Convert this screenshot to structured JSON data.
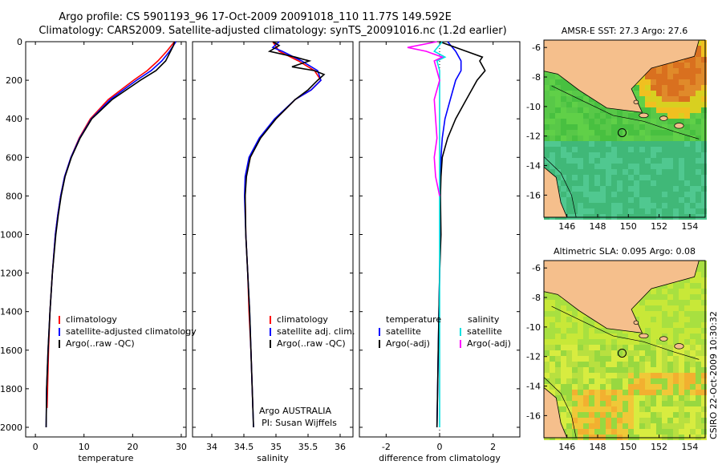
{
  "title": {
    "line1": "Argo profile: CS 5901193_96 17-Oct-2009 20091018_110 11.77S 149.592E",
    "line2": "Climatology: CARS2009. Satellite-adjusted climatology: synTS_20091016.nc (1.2d earlier)"
  },
  "stamp": "CSIRO 22-Oct-2009 10:30:32",
  "colors": {
    "climatology": "#ff0000",
    "satellite": "#0000ff",
    "argo": "#000000",
    "cyan": "#00e0e0",
    "magenta": "#ff00ff",
    "land": "#f5bf8c"
  },
  "chart_data": [
    {
      "type": "line",
      "id": "temperature",
      "xlabel": "temperature",
      "ylabel": "",
      "xlim": [
        -2,
        31
      ],
      "ylim": [
        2050,
        0
      ],
      "xticks": [
        0,
        10,
        20,
        30
      ],
      "yticks": [
        0,
        200,
        400,
        600,
        800,
        1000,
        1200,
        1400,
        1600,
        1800,
        2000
      ],
      "legend": [
        "climatology",
        "satellite-adjusted climatology",
        "Argo(..raw -QC)"
      ],
      "series": [
        {
          "name": "climatology",
          "color": "#ff0000",
          "depth": [
            0,
            50,
            100,
            150,
            200,
            300,
            400,
            500,
            600,
            700,
            800,
            900,
            1000,
            1200,
            1400,
            1600,
            1800,
            1900
          ],
          "values": [
            28.6,
            27.0,
            25.2,
            23.0,
            20.2,
            15.0,
            11.3,
            9.0,
            7.3,
            6.0,
            5.2,
            4.6,
            4.1,
            3.5,
            3.0,
            2.7,
            2.5,
            2.4
          ]
        },
        {
          "name": "satellite-adjusted climatology",
          "color": "#0000ff",
          "depth": [
            0,
            50,
            100,
            150,
            200,
            300,
            400,
            500,
            600,
            700,
            800,
            900,
            1000,
            1200,
            1400,
            1600,
            1800,
            2000
          ],
          "values": [
            28.9,
            27.6,
            26.0,
            23.8,
            20.8,
            15.4,
            11.5,
            9.1,
            7.3,
            6.0,
            5.2,
            4.6,
            4.1,
            3.5,
            3.0,
            2.6,
            2.3,
            2.2
          ]
        },
        {
          "name": "Argo(..raw -QC)",
          "color": "#000000",
          "depth": [
            0,
            20,
            50,
            100,
            150,
            200,
            300,
            400,
            500,
            600,
            700,
            800,
            900,
            1000,
            1200,
            1400,
            1600,
            1800,
            2000
          ],
          "values": [
            28.6,
            28.4,
            27.8,
            26.8,
            24.8,
            21.6,
            15.8,
            11.6,
            9.2,
            7.4,
            6.1,
            5.3,
            4.7,
            4.2,
            3.5,
            3.0,
            2.6,
            2.3,
            2.2
          ]
        }
      ]
    },
    {
      "type": "line",
      "id": "salinity",
      "xlabel": "salinity",
      "xlim": [
        33.7,
        36.2
      ],
      "ylim": [
        2050,
        0
      ],
      "xticks": [
        34,
        34.5,
        35,
        35.5,
        36
      ],
      "xtick_labels": [
        "34",
        "34.5",
        "35",
        "35.5",
        "36"
      ],
      "legend": [
        "climatology",
        "satellite adj. clim.",
        "Argo(..raw -QC)"
      ],
      "series": [
        {
          "name": "climatology",
          "color": "#ff0000",
          "depth": [
            0,
            50,
            100,
            150,
            200,
            250,
            300,
            400,
            500,
            600,
            700,
            800,
            1000,
            1200,
            1400,
            1600,
            1800,
            1900
          ],
          "values": [
            34.95,
            35.05,
            35.35,
            35.6,
            35.7,
            35.55,
            35.3,
            35.0,
            34.75,
            34.6,
            34.53,
            34.52,
            34.53,
            34.56,
            34.58,
            34.61,
            34.63,
            34.64
          ]
        },
        {
          "name": "satellite adj. clim.",
          "color": "#0000ff",
          "depth": [
            0,
            30,
            50,
            100,
            150,
            200,
            250,
            300,
            400,
            500,
            600,
            700,
            800,
            1000,
            1200,
            1400,
            1600,
            1800,
            2000
          ],
          "values": [
            35.05,
            34.95,
            35.1,
            35.4,
            35.65,
            35.7,
            35.55,
            35.3,
            34.98,
            34.74,
            34.58,
            34.52,
            34.51,
            34.53,
            34.56,
            34.59,
            34.61,
            34.63,
            34.65
          ]
        },
        {
          "name": "Argo(..raw -QC)",
          "color": "#000000",
          "depth": [
            0,
            20,
            50,
            80,
            100,
            130,
            150,
            170,
            200,
            250,
            300,
            400,
            500,
            600,
            700,
            800,
            1000,
            1200,
            1400,
            1600,
            1800,
            2000
          ],
          "values": [
            34.95,
            35.05,
            34.9,
            35.3,
            35.52,
            35.25,
            35.6,
            35.75,
            35.65,
            35.5,
            35.3,
            35.0,
            34.76,
            34.6,
            34.54,
            34.52,
            34.53,
            34.56,
            34.59,
            34.61,
            34.63,
            34.65
          ]
        }
      ],
      "annotations": [
        "Argo AUSTRALIA",
        "PI: Susan Wijffels"
      ]
    },
    {
      "type": "line",
      "id": "difference",
      "xlabel": "difference from climatology",
      "xlim": [
        -3,
        3
      ],
      "ylim": [
        2050,
        0
      ],
      "xticks": [
        -2,
        0,
        2
      ],
      "legend_groups": [
        {
          "title": "temperature",
          "entries": [
            "satellite",
            "Argo(-adj)"
          ]
        },
        {
          "title": "salinity",
          "entries": [
            "satellite",
            "Argo(-adj)"
          ]
        }
      ],
      "series": [
        {
          "name": "temperature satellite",
          "color": "#0000ff",
          "depth": [
            0,
            50,
            100,
            150,
            200,
            300,
            400,
            500,
            600,
            800,
            1000,
            1200,
            1600,
            2000
          ],
          "values": [
            0.3,
            0.6,
            0.8,
            0.8,
            0.6,
            0.4,
            0.2,
            0.1,
            0.05,
            0.02,
            0.02,
            0.0,
            -0.05,
            -0.1
          ]
        },
        {
          "name": "temperature Argo(-adj)",
          "color": "#000000",
          "depth": [
            0,
            50,
            80,
            100,
            150,
            200,
            300,
            400,
            500,
            600,
            700,
            800,
            1000,
            1200,
            1600,
            2000
          ],
          "values": [
            0.0,
            1.0,
            1.6,
            1.5,
            1.7,
            1.4,
            1.0,
            0.6,
            0.3,
            0.1,
            0.05,
            0.03,
            0.05,
            0.0,
            -0.05,
            -0.1
          ]
        },
        {
          "name": "salinity satellite",
          "color": "#00e0e0",
          "depth": [
            0,
            50,
            80,
            100,
            150,
            200,
            300,
            400,
            600,
            800,
            1000,
            1400,
            1800,
            2000
          ],
          "values": [
            0.1,
            -0.2,
            0.2,
            -0.1,
            0.0,
            0.0,
            0.0,
            0.0,
            0.0,
            0.0,
            0.0,
            0.0,
            0.0,
            0.0
          ]
        },
        {
          "name": "salinity Argo(-adj)",
          "color": "#ff00ff",
          "depth": [
            0,
            30,
            50,
            80,
            100,
            150,
            200,
            300,
            400,
            500,
            600,
            700,
            800
          ],
          "values": [
            -0.1,
            -1.2,
            -0.5,
            0.1,
            -0.2,
            -0.1,
            0.0,
            -0.2,
            -0.15,
            -0.1,
            -0.2,
            -0.15,
            0.0
          ]
        }
      ]
    },
    {
      "type": "heatmap",
      "id": "sst-map",
      "title": "AMSR-E SST: 27.3 Argo: 27.6",
      "xlim": [
        144.5,
        155
      ],
      "ylim": [
        -17.5,
        -5.5
      ],
      "xticks": [
        146,
        148,
        150,
        152,
        154
      ],
      "yticks": [
        -6,
        -8,
        -10,
        -12,
        -14,
        -16
      ],
      "argo_position": {
        "lon": 149.592,
        "lat": -11.77
      }
    },
    {
      "type": "heatmap",
      "id": "sla-map",
      "title": "Altimetric SLA: 0.095 Argo: 0.08",
      "xlim": [
        144.5,
        155
      ],
      "ylim": [
        -17.5,
        -5.5
      ],
      "xticks": [
        146,
        148,
        150,
        152,
        154
      ],
      "yticks": [
        -6,
        -8,
        -10,
        -12,
        -14,
        -16
      ],
      "argo_position": {
        "lon": 149.592,
        "lat": -11.77
      }
    }
  ]
}
